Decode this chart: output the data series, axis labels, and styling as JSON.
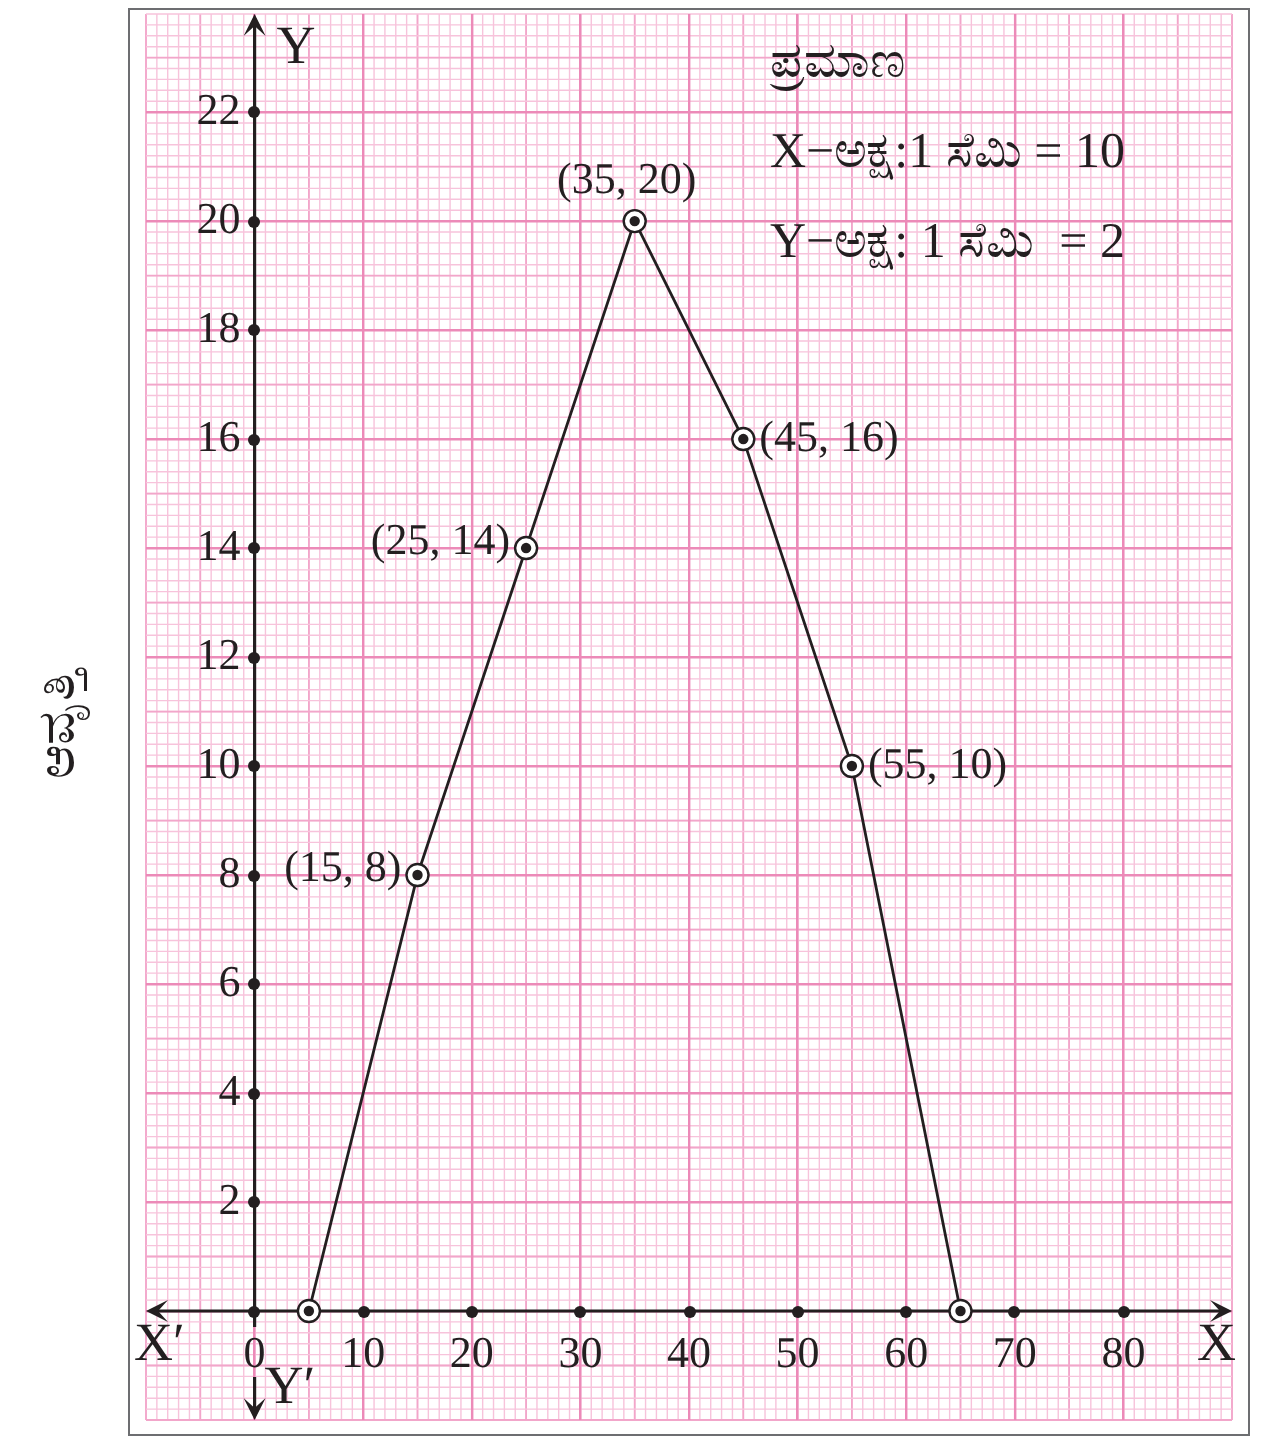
{
  "chart_data": {
    "type": "line",
    "x": [
      5,
      15,
      25,
      35,
      45,
      55,
      65
    ],
    "values": [
      0,
      8,
      14,
      20,
      16,
      10,
      0
    ],
    "color": "#231f20",
    "marker": "circle",
    "value_labels": [
      null,
      "(15, 8)",
      "(25, 14)",
      "(35, 20)",
      "(45, 16)",
      "(55, 10)",
      null
    ],
    "ylabel": "ಆವೃತ್ತಿ",
    "xlim": [
      -10,
      90
    ],
    "ylim": [
      -2,
      23.8
    ],
    "xticks": [
      0,
      10,
      20,
      30,
      40,
      50,
      60,
      70,
      80
    ],
    "yticks": [
      {
        "value": 0,
        "label": null
      },
      2,
      4,
      6,
      8,
      10,
      12,
      14,
      16,
      18,
      20,
      22
    ],
    "grid": true,
    "annotations": [
      "Y",
      "ಪ್ರಮಾಣ",
      "X−ಅಕ್ಷ:1 ಸೆಮಿ = 10",
      "Y−ಅಕ್ಷ: 1 ಸೆಮಿ  = 2",
      "X′",
      "X",
      "Y′"
    ]
  }
}
